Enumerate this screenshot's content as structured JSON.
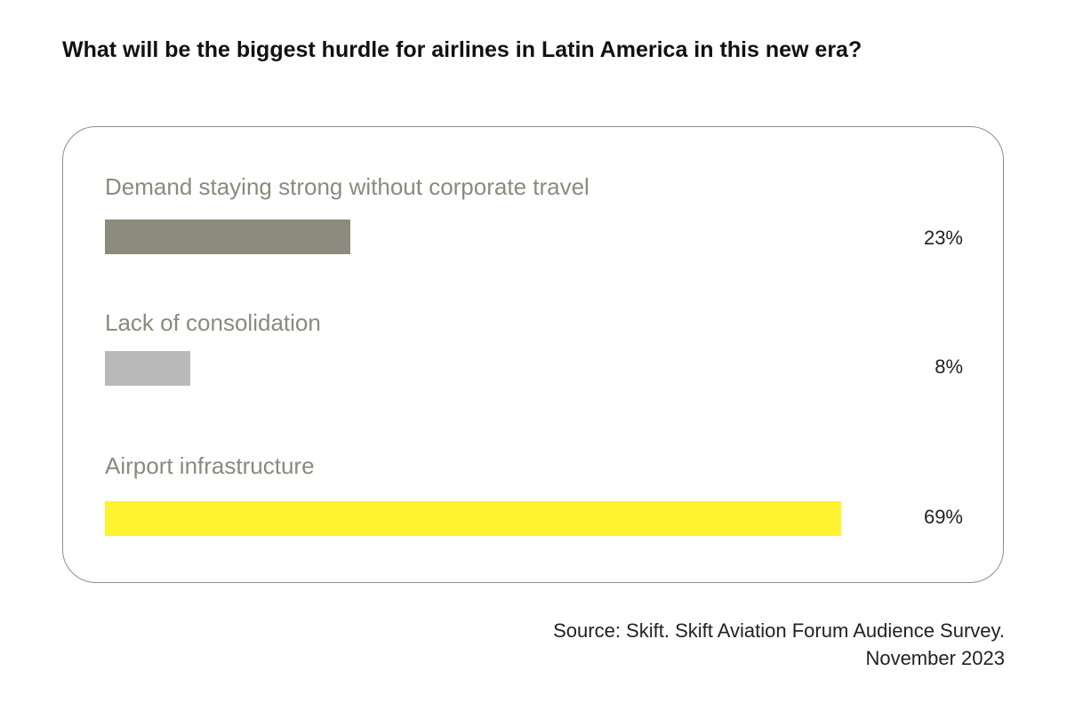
{
  "chart_data": {
    "type": "bar",
    "orientation": "horizontal",
    "title": "What will be the biggest hurdle for airlines in Latin America in this new era?",
    "categories": [
      "Demand staying strong without corporate travel",
      "Lack of consolidation",
      "Airport infrastructure"
    ],
    "values": [
      23,
      8,
      69
    ],
    "value_labels": [
      "23%",
      "8%",
      "69%"
    ],
    "unit": "%",
    "xlim": [
      0,
      69
    ],
    "colors": [
      "#8b8b7e",
      "#b9b9b9",
      "#fff22e"
    ],
    "grid": false,
    "legend": "none"
  },
  "source": {
    "line1": "Source: Skift. Skift Aviation Forum Audience Survey.",
    "line2": "November 2023"
  }
}
